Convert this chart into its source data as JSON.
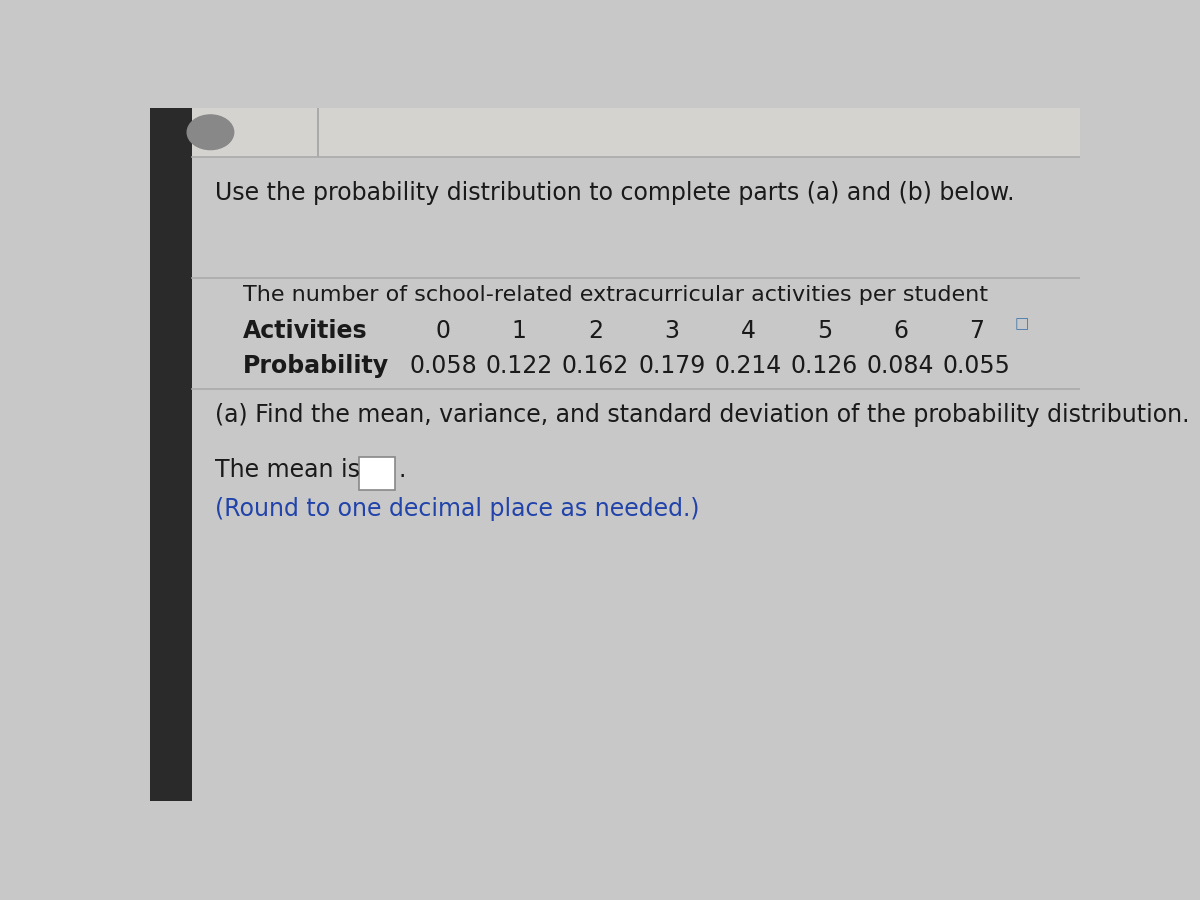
{
  "bg_color_main": "#c8c8c8",
  "bg_color_left": "#333333",
  "panel_color": "#e8e6e3",
  "top_area_color": "#d5d3d0",
  "header_text": "Use the probability distribution to complete parts (a) and (b) below.",
  "table_title": "The number of school-related extracurricular activities per student",
  "row1_label": "Activities",
  "row1_values": [
    "0",
    "1",
    "2",
    "3",
    "4",
    "5",
    "6",
    "7"
  ],
  "row2_label": "Probability",
  "row2_values": [
    "0.058",
    "0.122",
    "0.162",
    "0.179",
    "0.214",
    "0.126",
    "0.084",
    "0.055"
  ],
  "part_a_text": "(a) Find the mean, variance, and standard deviation of the probability distribution.",
  "mean_label": "The mean is",
  "round_note": "(Round to one decimal place as needed.)",
  "title_fontsize": 17,
  "table_fontsize": 17,
  "body_fontsize": 17,
  "header_color": "#1a1a1a",
  "blue_color": "#2244aa",
  "icon_color": "#4477aa",
  "line_color": "#aaaaaa",
  "left_bar_width": 0.045,
  "left_bar_color": "#2a2a2a"
}
